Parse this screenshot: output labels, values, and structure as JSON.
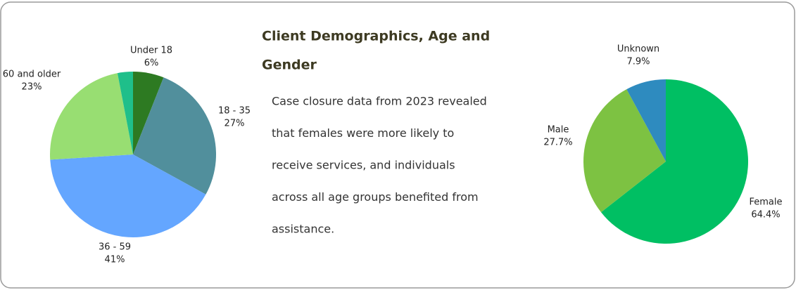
{
  "title_lines": [
    "Client Demographics, Age and",
    "Gender"
  ],
  "body_lines": [
    "Case closure data from 2023 revealed",
    "that females were more likely to",
    "receive services, and individuals",
    "across all age groups benefited from",
    "assistance."
  ],
  "chart_data": [
    {
      "type": "pie",
      "categories": [
        "Under 18",
        "18 - 35",
        "36 - 59",
        "60 and older",
        null
      ],
      "values": [
        6,
        27,
        41,
        23,
        3
      ],
      "value_labels": [
        "6%",
        "27%",
        "41%",
        "23%",
        null
      ],
      "colors": [
        "#2d7a22",
        "#518f9c",
        "#64a6ff",
        "#98de72",
        "#1fbf8a"
      ]
    },
    {
      "type": "pie",
      "categories": [
        "Female",
        "Male",
        "Unknown"
      ],
      "values": [
        64.4,
        27.7,
        7.9
      ],
      "value_labels": [
        "64.4%",
        "27.7%",
        "7.9%"
      ],
      "colors": [
        "#00bf63",
        "#7dc242",
        "#2e8bbf"
      ]
    }
  ]
}
